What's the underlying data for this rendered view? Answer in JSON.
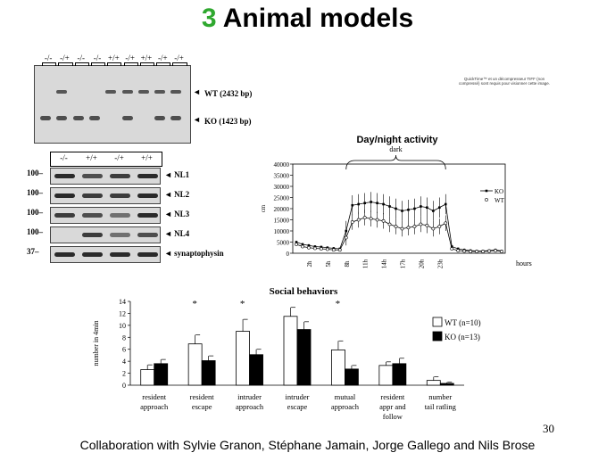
{
  "slide": {
    "title_number": "3",
    "title_text": "Animal models",
    "footer": "Collaboration with Sylvie Granon, Stéphane Jamain, Jorge Gallego and Nils Brose",
    "page_number": "30",
    "image_note": "QuickTime™ et un décompresseur TIFF (non compressé) sont requis pour visionner cette image."
  },
  "genotyping_gel": {
    "lanes": [
      "-/-",
      "-/+",
      "-/-",
      "-/-",
      "+/+",
      "-/+",
      "+/+",
      "-/+",
      "-/+"
    ],
    "labels": [
      "WT (2432 bp)",
      "KO (1423 bp)"
    ],
    "arrow": "◄"
  },
  "western_blot": {
    "lanes": [
      "-/-",
      "+/+",
      "-/+",
      "+/+"
    ],
    "proteins": [
      "NL1",
      "NL2",
      "NL3",
      "NL4",
      "synaptophysin"
    ],
    "mw_markers": [
      "100",
      "100",
      "100",
      "100",
      "37"
    ]
  },
  "chart_data": [
    {
      "type": "line",
      "title": "Day/night activity",
      "annotation": "dark",
      "ylabel": "cm",
      "xlabel": "hours",
      "ylim": [
        0,
        40000
      ],
      "yticks": [
        0,
        5000,
        10000,
        15000,
        20000,
        25000,
        30000,
        35000,
        40000
      ],
      "xtick_labels": [
        "2h",
        "5h",
        "8h",
        "11h",
        "14h",
        "17h",
        "20h",
        "23h"
      ],
      "series": [
        {
          "name": "KO",
          "values": [
            5000,
            4000,
            3500,
            3000,
            2800,
            2500,
            2200,
            2000,
            10000,
            21500,
            22000,
            22500,
            23000,
            22500,
            22000,
            21000,
            20000,
            19000,
            19500,
            20000,
            21000,
            20500,
            19000,
            20500,
            22000,
            3000,
            2000,
            1500,
            1200,
            1000,
            1000,
            1200,
            1500,
            1000
          ]
        },
        {
          "name": "WT",
          "values": [
            4000,
            3000,
            2500,
            2200,
            2000,
            1800,
            1500,
            1500,
            7000,
            14000,
            15000,
            16000,
            15500,
            15000,
            14500,
            13000,
            12000,
            11000,
            11500,
            12000,
            13000,
            12500,
            11000,
            12000,
            13500,
            2000,
            1200,
            1000,
            800,
            800,
            800,
            1000,
            1200,
            800
          ]
        }
      ],
      "legend": "right"
    },
    {
      "type": "bar",
      "title": "Social behaviors",
      "ylabel": "number in 4min",
      "ylim": [
        0,
        14
      ],
      "yticks": [
        0,
        2,
        4,
        6,
        8,
        10,
        12,
        14
      ],
      "categories": [
        [
          "resident",
          "approach"
        ],
        [
          "resident",
          "escape"
        ],
        [
          "intruder",
          "approach"
        ],
        [
          "intruder",
          "escape"
        ],
        [
          "mutual",
          "approach"
        ],
        [
          "resident",
          "appr and",
          "follow"
        ],
        [
          "number",
          "tail ratling"
        ]
      ],
      "significance": [
        "",
        "*",
        "*",
        "",
        "*",
        "",
        ""
      ],
      "series": [
        {
          "name": "WT (n=10)",
          "values": [
            2.6,
            6.9,
            9.0,
            11.5,
            5.9,
            3.3,
            0.8
          ],
          "errors": [
            0.8,
            1.5,
            2.0,
            1.5,
            1.5,
            0.6,
            0.6
          ],
          "color": "#ffffff"
        },
        {
          "name": "KO (n=13)",
          "values": [
            3.6,
            4.1,
            5.1,
            9.3,
            2.7,
            3.6,
            0.3
          ],
          "errors": [
            0.7,
            0.8,
            0.9,
            1.3,
            0.6,
            0.9,
            0.2
          ],
          "color": "#000000"
        }
      ],
      "legend": "right"
    }
  ]
}
